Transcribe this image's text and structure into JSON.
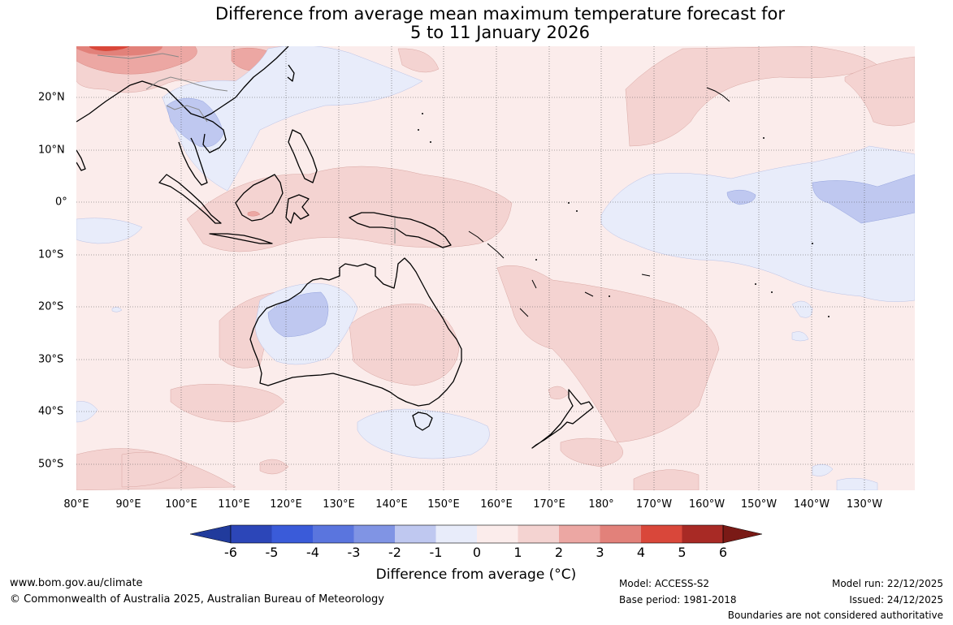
{
  "title": {
    "line1": "Difference from average mean maximum temperature forecast for",
    "line2": "5 to 11 January 2026"
  },
  "map_axes": {
    "longitude_labels": [
      "80°E",
      "90°E",
      "100°E",
      "110°E",
      "120°E",
      "130°E",
      "140°E",
      "150°E",
      "160°E",
      "170°E",
      "180°",
      "170°W",
      "160°W",
      "150°W",
      "140°W",
      "130°W"
    ],
    "latitude_labels": [
      "20°N",
      "10°N",
      "0°",
      "10°S",
      "20°S",
      "30°S",
      "40°S",
      "50°S"
    ]
  },
  "colorbar": {
    "ticks": [
      "-6",
      "-5",
      "-4",
      "-3",
      "-2",
      "-1",
      "0",
      "1",
      "2",
      "3",
      "4",
      "5",
      "6"
    ],
    "label": "Difference from average (°C)",
    "colors": [
      "#213b9c",
      "#2c46b8",
      "#3a5bd9",
      "#5a75de",
      "#8094e4",
      "#bfc8f0",
      "#e8ecfa",
      "#fbeceb",
      "#f4d3d1",
      "#eca7a3",
      "#e2817a",
      "#d9473a",
      "#a82a25",
      "#7a1a16"
    ]
  },
  "footer": {
    "website": "www.bom.gov.au/climate",
    "copyright": "© Commonwealth of Australia 2025, Australian Bureau of Meteorology",
    "model": "Model: ACCESS-S2",
    "base_period": "Base period: 1981-2018",
    "model_run": "Model run: 22/12/2025",
    "issued": "Issued: 24/12/2025",
    "disclaimer": "Boundaries are not considered authoritative"
  }
}
